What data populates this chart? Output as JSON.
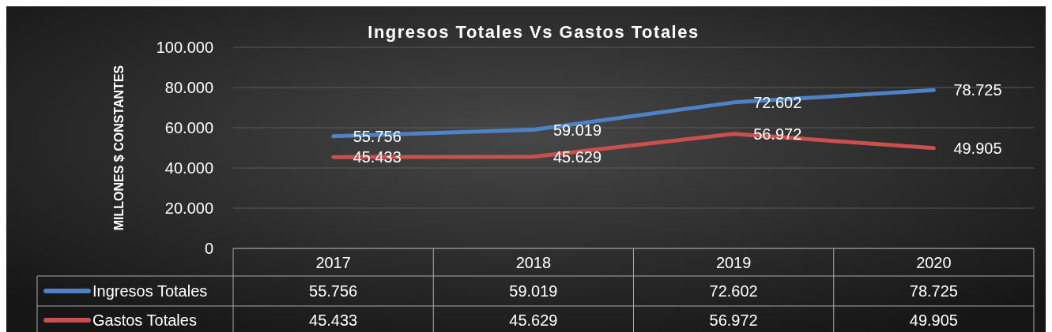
{
  "chart_data": {
    "type": "line",
    "title": "Ingresos Totales Vs Gastos Totales",
    "ylabel": "MILLONES $ CONSTANTES",
    "categories": [
      "2017",
      "2018",
      "2019",
      "2020"
    ],
    "series": [
      {
        "name": "Ingresos Totales",
        "color": "#4f81c7",
        "values": [
          55756,
          59019,
          72602,
          78725
        ],
        "value_labels": [
          "55.756",
          "59.019",
          "72.602",
          "78.725"
        ]
      },
      {
        "name": "Gastos Totales",
        "color": "#c9504c",
        "values": [
          45433,
          45629,
          56972,
          49905
        ],
        "value_labels": [
          "45.433",
          "45.629",
          "56.972",
          "49.905"
        ]
      }
    ],
    "ylim": [
      0,
      100000
    ],
    "yticks": [
      0,
      {
        "value": 20000,
        "label": "20.000"
      },
      {
        "value": 40000,
        "label": "40.000"
      },
      {
        "value": 60000,
        "label": "60.000"
      },
      {
        "value": 80000,
        "label": "80.000"
      },
      {
        "value": 100000,
        "label": "100.000"
      }
    ],
    "grid": "y",
    "legend": "bottom",
    "marker": "none",
    "line_style": "solid"
  }
}
